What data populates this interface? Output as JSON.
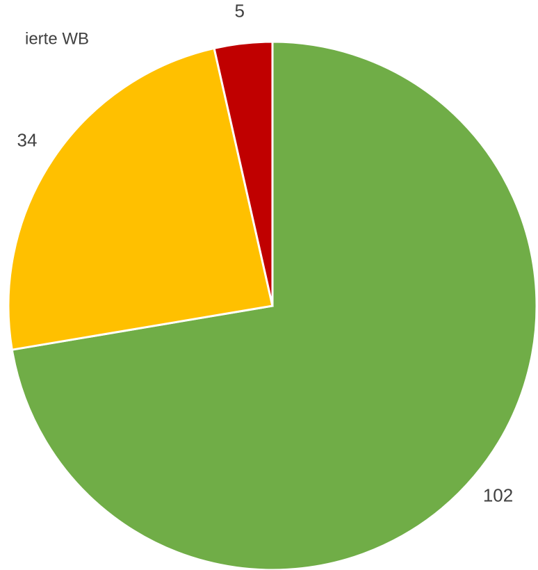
{
  "chart_data": {
    "type": "pie",
    "annotation": "ierte WB",
    "values": [
      102,
      34,
      5
    ],
    "colors": [
      "#70ad47",
      "#ffc000",
      "#c00000"
    ],
    "start_angle": 0,
    "direction": "clockwise"
  }
}
